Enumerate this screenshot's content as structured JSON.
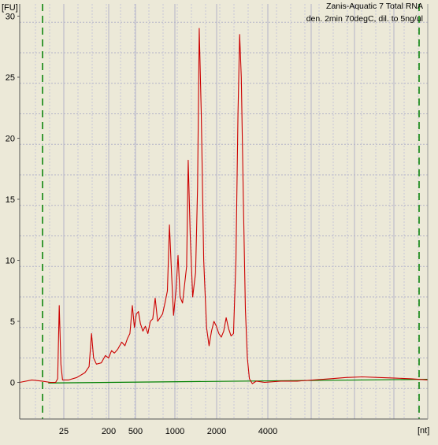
{
  "chart_data": {
    "type": "line",
    "title": "Zanis-Aquatic 7 Total RNA",
    "subtitle": "den. 2min 70degC, dil. to 5ng/ul",
    "ylabel": "[FU]",
    "xlabel": "[nt]",
    "ylim": [
      -3,
      31
    ],
    "y_ticks": [
      0,
      5,
      10,
      15,
      20,
      25,
      30
    ],
    "x_tick_labels": [
      "25",
      "200",
      "500",
      "1000",
      "2000",
      "4000"
    ],
    "grid": true,
    "marker_lines_style": "dashed green",
    "colors": {
      "plot_background": "#ece9d8",
      "grid": "#b4b4c8",
      "trace": "#cc0000",
      "baseline": "#008000",
      "marker": "#008000"
    },
    "series": [
      {
        "values": [
          {
            "t": 0.0,
            "y": 0.0
          },
          {
            "t": 0.03,
            "y": 0.2
          },
          {
            "t": 0.055,
            "y": 0.1
          },
          {
            "t": 0.075,
            "y": 0.0
          },
          {
            "t": 0.088,
            "y": 0.0
          },
          {
            "t": 0.093,
            "y": 0.3
          },
          {
            "t": 0.097,
            "y": 6.3
          },
          {
            "t": 0.101,
            "y": 1.5
          },
          {
            "t": 0.105,
            "y": 0.2
          },
          {
            "t": 0.12,
            "y": 0.2
          },
          {
            "t": 0.14,
            "y": 0.4
          },
          {
            "t": 0.16,
            "y": 0.8
          },
          {
            "t": 0.17,
            "y": 1.3
          },
          {
            "t": 0.176,
            "y": 4.0
          },
          {
            "t": 0.181,
            "y": 2.0
          },
          {
            "t": 0.188,
            "y": 1.5
          },
          {
            "t": 0.2,
            "y": 1.6
          },
          {
            "t": 0.21,
            "y": 2.2
          },
          {
            "t": 0.218,
            "y": 2.0
          },
          {
            "t": 0.225,
            "y": 2.6
          },
          {
            "t": 0.232,
            "y": 2.4
          },
          {
            "t": 0.24,
            "y": 2.7
          },
          {
            "t": 0.25,
            "y": 3.3
          },
          {
            "t": 0.258,
            "y": 3.0
          },
          {
            "t": 0.264,
            "y": 3.6
          },
          {
            "t": 0.27,
            "y": 4.0
          },
          {
            "t": 0.276,
            "y": 6.3
          },
          {
            "t": 0.281,
            "y": 4.5
          },
          {
            "t": 0.286,
            "y": 5.6
          },
          {
            "t": 0.291,
            "y": 5.8
          },
          {
            "t": 0.296,
            "y": 4.8
          },
          {
            "t": 0.302,
            "y": 4.2
          },
          {
            "t": 0.308,
            "y": 4.6
          },
          {
            "t": 0.314,
            "y": 4.0
          },
          {
            "t": 0.32,
            "y": 5.0
          },
          {
            "t": 0.326,
            "y": 5.2
          },
          {
            "t": 0.332,
            "y": 6.9
          },
          {
            "t": 0.338,
            "y": 5.0
          },
          {
            "t": 0.344,
            "y": 5.3
          },
          {
            "t": 0.35,
            "y": 5.6
          },
          {
            "t": 0.356,
            "y": 6.5
          },
          {
            "t": 0.362,
            "y": 7.5
          },
          {
            "t": 0.367,
            "y": 12.9
          },
          {
            "t": 0.372,
            "y": 9.0
          },
          {
            "t": 0.377,
            "y": 5.5
          },
          {
            "t": 0.383,
            "y": 7.5
          },
          {
            "t": 0.388,
            "y": 10.4
          },
          {
            "t": 0.393,
            "y": 7.0
          },
          {
            "t": 0.399,
            "y": 6.5
          },
          {
            "t": 0.404,
            "y": 8.0
          },
          {
            "t": 0.409,
            "y": 9.5
          },
          {
            "t": 0.413,
            "y": 18.2
          },
          {
            "t": 0.418,
            "y": 12.0
          },
          {
            "t": 0.424,
            "y": 7.0
          },
          {
            "t": 0.431,
            "y": 9.0
          },
          {
            "t": 0.436,
            "y": 16.0
          },
          {
            "t": 0.44,
            "y": 29.0
          },
          {
            "t": 0.445,
            "y": 22.0
          },
          {
            "t": 0.451,
            "y": 10.0
          },
          {
            "t": 0.458,
            "y": 4.5
          },
          {
            "t": 0.464,
            "y": 3.0
          },
          {
            "t": 0.47,
            "y": 4.2
          },
          {
            "t": 0.476,
            "y": 5.0
          },
          {
            "t": 0.482,
            "y": 4.6
          },
          {
            "t": 0.488,
            "y": 4.0
          },
          {
            "t": 0.494,
            "y": 3.7
          },
          {
            "t": 0.5,
            "y": 4.2
          },
          {
            "t": 0.506,
            "y": 5.3
          },
          {
            "t": 0.512,
            "y": 4.4
          },
          {
            "t": 0.518,
            "y": 3.8
          },
          {
            "t": 0.524,
            "y": 4.0
          },
          {
            "t": 0.53,
            "y": 10.0
          },
          {
            "t": 0.535,
            "y": 22.0
          },
          {
            "t": 0.539,
            "y": 28.5
          },
          {
            "t": 0.543,
            "y": 25.0
          },
          {
            "t": 0.548,
            "y": 15.0
          },
          {
            "t": 0.553,
            "y": 6.0
          },
          {
            "t": 0.558,
            "y": 2.0
          },
          {
            "t": 0.563,
            "y": 0.3
          },
          {
            "t": 0.57,
            "y": -0.1
          },
          {
            "t": 0.58,
            "y": 0.1
          },
          {
            "t": 0.6,
            "y": 0.0
          },
          {
            "t": 0.64,
            "y": 0.1
          },
          {
            "t": 0.68,
            "y": 0.1
          },
          {
            "t": 0.72,
            "y": 0.2
          },
          {
            "t": 0.76,
            "y": 0.3
          },
          {
            "t": 0.8,
            "y": 0.4
          },
          {
            "t": 0.84,
            "y": 0.45
          },
          {
            "t": 0.88,
            "y": 0.4
          },
          {
            "t": 0.92,
            "y": 0.35
          },
          {
            "t": 0.96,
            "y": 0.3
          },
          {
            "t": 1.0,
            "y": 0.2
          }
        ]
      }
    ],
    "baseline": [
      {
        "t": 0.07,
        "y": -0.05
      },
      {
        "t": 1.0,
        "y": 0.25
      }
    ]
  }
}
